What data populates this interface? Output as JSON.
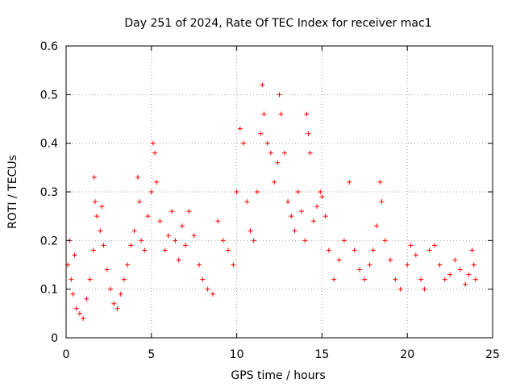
{
  "chart_data": {
    "type": "scatter",
    "title": "Day 251 of 2024, Rate Of TEC Index for receiver mac1",
    "xlabel": "GPS time / hours",
    "ylabel": "ROTI / TECUs",
    "xlim": [
      0,
      25
    ],
    "ylim": [
      0,
      0.6
    ],
    "x_ticks": [
      "0",
      "5",
      "10",
      "15",
      "20",
      "25"
    ],
    "y_ticks": [
      "0",
      "0.1",
      "0.2",
      "0.3",
      "0.4",
      "0.5",
      "0.6"
    ],
    "grid": true,
    "marker": "plus",
    "color": "#ff0000",
    "series": [
      {
        "name": "ROTI",
        "x": [
          0.1,
          0.2,
          0.3,
          0.4,
          0.5,
          0.6,
          0.8,
          1.0,
          1.2,
          1.4,
          1.6,
          1.65,
          1.7,
          1.8,
          2.0,
          2.1,
          2.2,
          2.4,
          2.6,
          2.8,
          3.0,
          3.2,
          3.4,
          3.6,
          3.8,
          4.0,
          4.2,
          4.3,
          4.4,
          4.6,
          4.8,
          5.0,
          5.1,
          5.2,
          5.3,
          5.5,
          5.8,
          6.0,
          6.2,
          6.4,
          6.6,
          6.8,
          7.0,
          7.2,
          7.5,
          7.8,
          8.0,
          8.3,
          8.6,
          8.9,
          9.2,
          9.5,
          9.8,
          10.0,
          10.2,
          10.4,
          10.6,
          10.8,
          11.0,
          11.2,
          11.4,
          11.5,
          11.6,
          11.8,
          12.0,
          12.2,
          12.4,
          12.5,
          12.6,
          12.8,
          13.0,
          13.2,
          13.4,
          13.6,
          13.8,
          14.0,
          14.1,
          14.2,
          14.3,
          14.5,
          14.7,
          14.9,
          15.0,
          15.2,
          15.4,
          15.7,
          16.0,
          16.3,
          16.6,
          16.9,
          17.2,
          17.5,
          17.8,
          18.0,
          18.2,
          18.4,
          18.5,
          18.7,
          19.0,
          19.3,
          19.6,
          20.0,
          20.2,
          20.5,
          20.8,
          21.0,
          21.3,
          21.6,
          21.9,
          22.2,
          22.5,
          22.8,
          23.1,
          23.4,
          23.6,
          23.8,
          23.9,
          24.0
        ],
        "y": [
          0.15,
          0.2,
          0.12,
          0.09,
          0.17,
          0.06,
          0.05,
          0.04,
          0.08,
          0.12,
          0.18,
          0.33,
          0.28,
          0.25,
          0.22,
          0.27,
          0.19,
          0.14,
          0.1,
          0.07,
          0.06,
          0.09,
          0.12,
          0.15,
          0.19,
          0.22,
          0.33,
          0.28,
          0.2,
          0.18,
          0.25,
          0.3,
          0.4,
          0.38,
          0.32,
          0.24,
          0.18,
          0.21,
          0.26,
          0.2,
          0.16,
          0.23,
          0.19,
          0.26,
          0.21,
          0.15,
          0.12,
          0.1,
          0.09,
          0.24,
          0.2,
          0.18,
          0.15,
          0.3,
          0.43,
          0.4,
          0.28,
          0.22,
          0.2,
          0.3,
          0.42,
          0.52,
          0.46,
          0.4,
          0.38,
          0.32,
          0.36,
          0.5,
          0.46,
          0.38,
          0.28,
          0.25,
          0.22,
          0.3,
          0.26,
          0.2,
          0.46,
          0.42,
          0.38,
          0.24,
          0.27,
          0.3,
          0.29,
          0.25,
          0.18,
          0.12,
          0.16,
          0.2,
          0.32,
          0.18,
          0.14,
          0.12,
          0.15,
          0.18,
          0.23,
          0.32,
          0.28,
          0.2,
          0.16,
          0.12,
          0.1,
          0.15,
          0.19,
          0.17,
          0.12,
          0.1,
          0.18,
          0.19,
          0.15,
          0.12,
          0.13,
          0.16,
          0.14,
          0.11,
          0.13,
          0.18,
          0.15,
          0.12
        ],
        "color": "#ff0000"
      }
    ]
  }
}
